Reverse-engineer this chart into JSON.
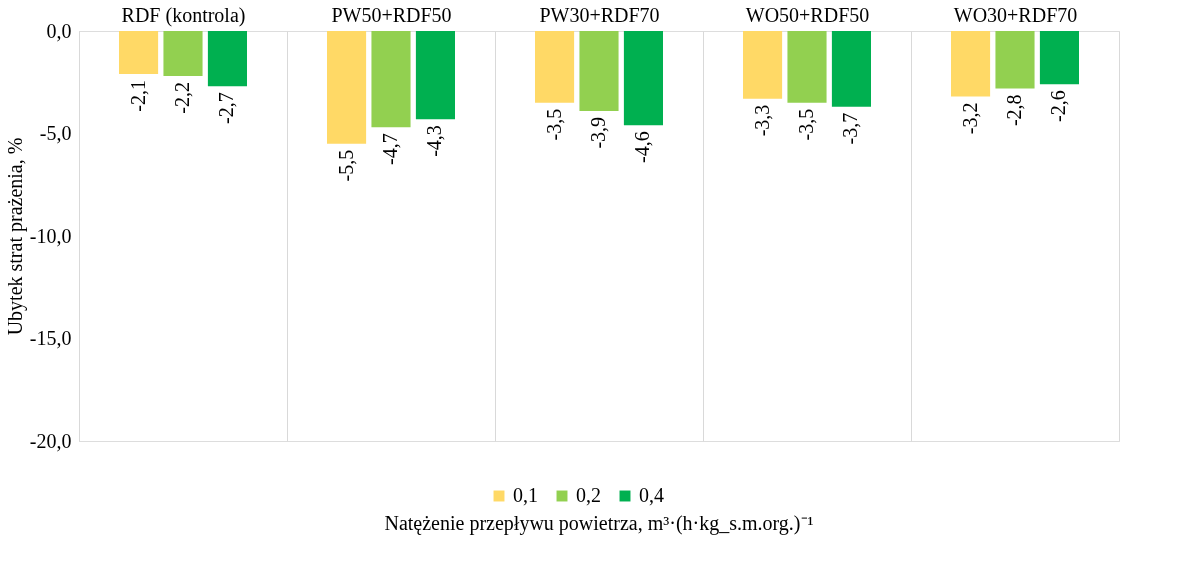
{
  "chart_data": {
    "type": "bar",
    "xlabel": "Natężenie przepływu powietrza, m³·(h·kg_s.m.org.)⁻¹",
    "ylabel": "Ubytek strat prażenia, %",
    "categories": [
      "RDF (kontrola)",
      "PW50+RDF50",
      "PW30+RDF70",
      "WO50+RDF50",
      "WO30+RDF70"
    ],
    "series": [
      {
        "name": "0,1",
        "color": "#ffd966",
        "values": [
          -2.1,
          -5.5,
          -3.5,
          -3.3,
          -3.2
        ],
        "value_labels": [
          "-2,1",
          "-5,5",
          "-3,5",
          "-3,3",
          "-3,2"
        ]
      },
      {
        "name": "0,2",
        "color": "#92d050",
        "values": [
          -2.2,
          -4.7,
          -3.9,
          -3.5,
          -2.8
        ],
        "value_labels": [
          "-2,2",
          "-4,7",
          "-3,9",
          "-3,5",
          "-2,8"
        ]
      },
      {
        "name": "0,4",
        "color": "#00b050",
        "values": [
          -2.7,
          -4.3,
          -4.6,
          -3.7,
          -2.6
        ],
        "value_labels": [
          "-2,7",
          "-4,3",
          "-4,6",
          "-3,7",
          "-2,6"
        ]
      }
    ],
    "ylim": [
      -20,
      0
    ],
    "yticks": [
      {
        "value": 0,
        "label": "0,0"
      },
      {
        "value": -5,
        "label": "-5,0"
      },
      {
        "value": -10,
        "label": "-10,0"
      },
      {
        "value": -15,
        "label": "-15,0"
      },
      {
        "value": -20,
        "label": "-20,0"
      }
    ],
    "grid": "x",
    "legend": "bottom"
  }
}
